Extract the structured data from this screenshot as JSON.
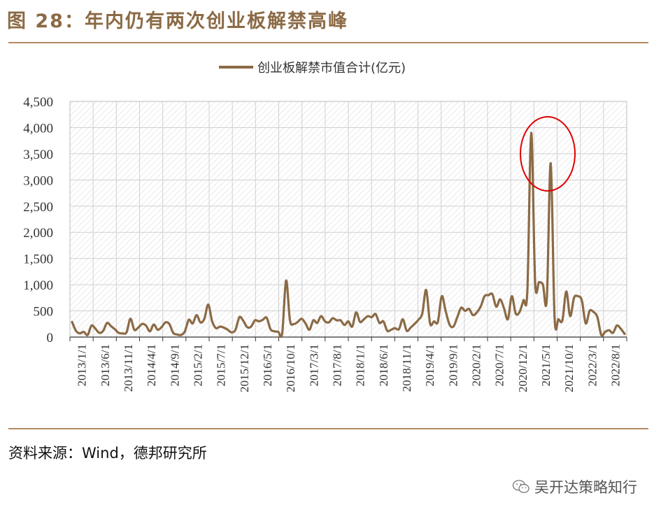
{
  "figure": {
    "title": "图 28：年内仍有两次创业板解禁高峰"
  },
  "source": "资料来源：Wind，德邦研究所",
  "watermark": {
    "text": "吴开达策略知行",
    "icon": "wechat-icon"
  },
  "colors": {
    "line": "#8B6A45",
    "accent": "#B08A60",
    "highlight": "#E00000"
  },
  "chart_data": {
    "type": "line",
    "legend": "创业板解禁市值合计(亿元)",
    "legend_position": "top-center",
    "ylim": [
      0,
      4500
    ],
    "yticks": [
      "0",
      "500",
      "1,000",
      "1,500",
      "2,000",
      "2,500",
      "3,000",
      "3,500",
      "4,000",
      "4,500"
    ],
    "ytick_values": [
      0,
      500,
      1000,
      1500,
      2000,
      2500,
      3000,
      3500,
      4000,
      4500
    ],
    "xticks": [
      "2013/1/1",
      "2013/6/1",
      "2013/11/1",
      "2014/4/1",
      "2014/9/1",
      "2015/2/1",
      "2015/7/1",
      "2015/12/1",
      "2016/5/1",
      "2016/10/1",
      "2017/3/1",
      "2017/8/1",
      "2018/1/1",
      "2018/6/1",
      "2018/11/1",
      "2019/4/1",
      "2019/9/1",
      "2020/2/1",
      "2020/7/1",
      "2020/12/1",
      "2021/5/1",
      "2021/10/1",
      "2022/3/1",
      "2022/8/1"
    ],
    "grid": true,
    "highlight": "circle around 2021 peaks",
    "series": [
      {
        "values": [
          290,
          120,
          70,
          100,
          40,
          220,
          160,
          80,
          120,
          270,
          210,
          150,
          80,
          70,
          90,
          350,
          140,
          180,
          250,
          220,
          110,
          240,
          140,
          190,
          280,
          250,
          80,
          50,
          40,
          110,
          330,
          260,
          420,
          280,
          350,
          620,
          300,
          170,
          200,
          180,
          140,
          90,
          140,
          380,
          310,
          190,
          200,
          320,
          300,
          330,
          370,
          150,
          110,
          100,
          70,
          1080,
          320,
          250,
          290,
          350,
          260,
          140,
          320,
          270,
          400,
          300,
          280,
          360,
          320,
          320,
          230,
          300,
          200,
          470,
          290,
          340,
          400,
          380,
          440,
          270,
          300,
          120,
          140,
          170,
          150,
          340,
          120,
          180,
          250,
          330,
          450,
          900,
          260,
          300,
          290,
          780,
          500,
          240,
          200,
          380,
          560,
          500,
          540,
          420,
          470,
          580,
          780,
          800,
          820,
          580,
          720,
          550,
          340,
          780,
          450,
          480,
          700,
          880,
          3900,
          1050,
          1050,
          1000,
          720,
          3320,
          370,
          340,
          320,
          870,
          400,
          750,
          780,
          700,
          260,
          500,
          480,
          380,
          40,
          100,
          130,
          80,
          220,
          160,
          60
        ]
      }
    ]
  }
}
